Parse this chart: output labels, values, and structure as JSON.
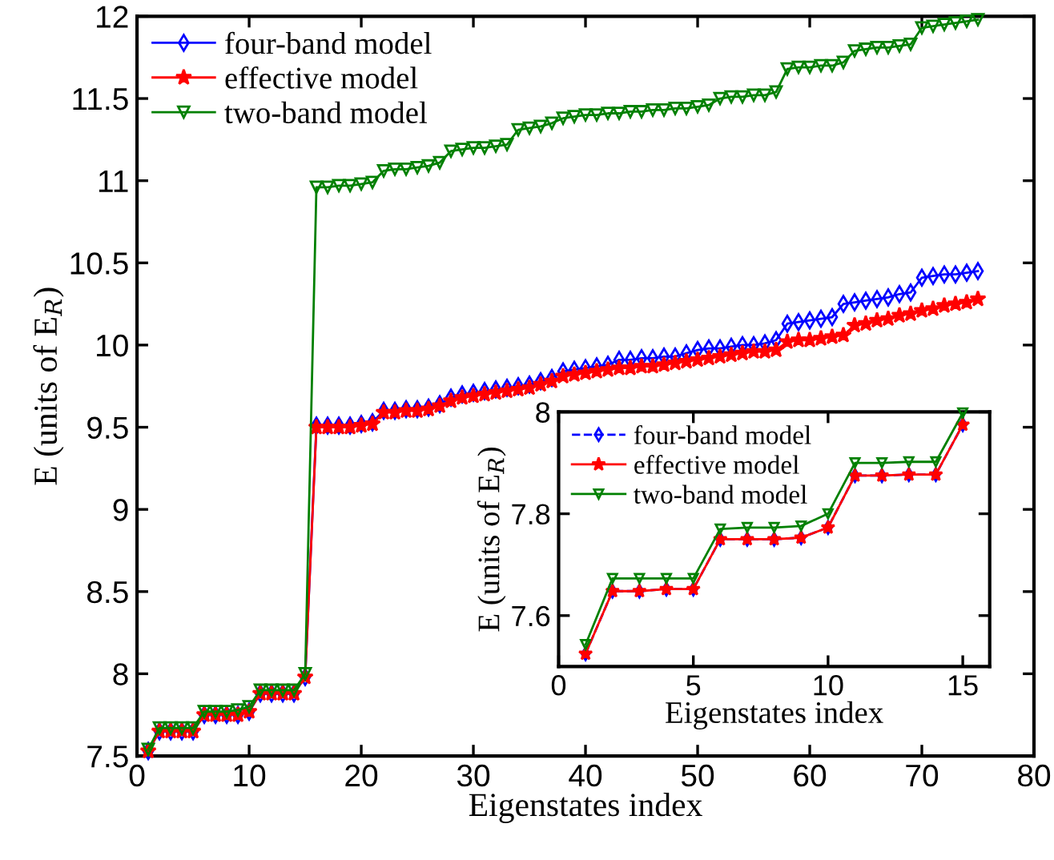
{
  "chart_data": [
    {
      "type": "line",
      "xlabel": "Eigenstates index",
      "ylabel": "E (units of E$_{R}$)",
      "x": [
        1,
        2,
        3,
        4,
        5,
        6,
        7,
        8,
        9,
        10,
        11,
        12,
        13,
        14,
        15,
        16,
        17,
        18,
        19,
        20,
        21,
        22,
        23,
        24,
        25,
        26,
        27,
        28,
        29,
        30,
        31,
        32,
        33,
        34,
        35,
        36,
        37,
        38,
        39,
        40,
        41,
        42,
        43,
        44,
        45,
        46,
        47,
        48,
        49,
        50,
        51,
        52,
        53,
        54,
        55,
        56,
        57,
        58,
        59,
        60,
        61,
        62,
        63,
        64,
        65,
        66,
        67,
        68,
        69,
        70,
        71,
        72,
        73,
        74,
        75
      ],
      "xlim": [
        0,
        80
      ],
      "xticks": [
        0,
        10,
        20,
        30,
        40,
        50,
        60,
        70,
        80
      ],
      "ylim": [
        7.5,
        12
      ],
      "yticks": [
        7.5,
        8,
        8.5,
        9,
        9.5,
        10,
        10.5,
        11,
        11.5,
        12
      ],
      "legend": "top left",
      "series": [
        {
          "name": "four-band model",
          "color": "#0000ff",
          "marker": "diamond",
          "line_style": "solid",
          "values": [
            7.53,
            7.65,
            7.65,
            7.65,
            7.65,
            7.75,
            7.75,
            7.75,
            7.75,
            7.77,
            7.88,
            7.88,
            7.88,
            7.88,
            7.98,
            9.51,
            9.51,
            9.51,
            9.51,
            9.52,
            9.53,
            9.6,
            9.6,
            9.61,
            9.61,
            9.62,
            9.64,
            9.68,
            9.7,
            9.71,
            9.72,
            9.73,
            9.74,
            9.75,
            9.76,
            9.78,
            9.8,
            9.84,
            9.85,
            9.86,
            9.87,
            9.88,
            9.91,
            9.91,
            9.92,
            9.92,
            9.93,
            9.93,
            9.95,
            9.97,
            9.98,
            9.98,
            9.99,
            10.0,
            10.0,
            10.01,
            10.03,
            10.13,
            10.14,
            10.15,
            10.16,
            10.17,
            10.25,
            10.26,
            10.27,
            10.28,
            10.29,
            10.31,
            10.32,
            10.41,
            10.42,
            10.43,
            10.43,
            10.44,
            10.45
          ]
        },
        {
          "name": "effective model",
          "color": "#ff0000",
          "marker": "star",
          "line_style": "solid",
          "values": [
            7.53,
            7.65,
            7.65,
            7.65,
            7.65,
            7.75,
            7.75,
            7.75,
            7.75,
            7.77,
            7.88,
            7.88,
            7.88,
            7.88,
            7.98,
            9.5,
            9.5,
            9.5,
            9.5,
            9.51,
            9.52,
            9.59,
            9.59,
            9.6,
            9.6,
            9.61,
            9.63,
            9.66,
            9.68,
            9.69,
            9.7,
            9.71,
            9.72,
            9.73,
            9.74,
            9.76,
            9.78,
            9.81,
            9.82,
            9.83,
            9.84,
            9.85,
            9.86,
            9.86,
            9.87,
            9.87,
            9.88,
            9.89,
            9.9,
            9.91,
            9.92,
            9.93,
            9.94,
            9.95,
            9.96,
            9.96,
            9.97,
            10.02,
            10.03,
            10.03,
            10.04,
            10.05,
            10.06,
            10.12,
            10.13,
            10.15,
            10.16,
            10.18,
            10.19,
            10.21,
            10.22,
            10.24,
            10.25,
            10.26,
            10.28
          ]
        },
        {
          "name": "two-band model",
          "color": "#008000",
          "marker": "triangle",
          "line_style": "solid",
          "values": [
            7.54,
            7.67,
            7.67,
            7.67,
            7.67,
            7.77,
            7.77,
            7.77,
            7.78,
            7.8,
            7.9,
            7.9,
            7.9,
            7.9,
            8.0,
            10.96,
            10.96,
            10.97,
            10.97,
            10.98,
            10.99,
            11.06,
            11.07,
            11.07,
            11.08,
            11.09,
            11.11,
            11.18,
            11.19,
            11.2,
            11.2,
            11.21,
            11.22,
            11.31,
            11.32,
            11.33,
            11.35,
            11.38,
            11.39,
            11.4,
            11.4,
            11.41,
            11.41,
            11.42,
            11.42,
            11.43,
            11.43,
            11.44,
            11.44,
            11.45,
            11.46,
            11.5,
            11.51,
            11.51,
            11.52,
            11.52,
            11.54,
            11.68,
            11.69,
            11.69,
            11.7,
            11.7,
            11.72,
            11.79,
            11.8,
            11.81,
            11.81,
            11.82,
            11.83,
            11.93,
            11.94,
            11.95,
            11.96,
            11.97,
            11.98
          ]
        }
      ]
    },
    {
      "type": "line",
      "xlabel": "Eigenstates index",
      "ylabel": "E (units of E$_{R}$)",
      "x": [
        1,
        2,
        3,
        4,
        5,
        6,
        7,
        8,
        9,
        10,
        11,
        12,
        13,
        14,
        15
      ],
      "xlim": [
        0,
        16
      ],
      "xticks": [
        0,
        5,
        10,
        15
      ],
      "ylim": [
        7.5,
        8
      ],
      "yticks": [
        7.6,
        7.8,
        8
      ],
      "legend": "top left",
      "series": [
        {
          "name": "four-band model",
          "color": "#0000ff",
          "marker": "diamond",
          "line_style": "dashed",
          "values": [
            7.525,
            7.648,
            7.648,
            7.652,
            7.652,
            7.75,
            7.75,
            7.75,
            7.753,
            7.773,
            7.875,
            7.875,
            7.877,
            7.877,
            7.975
          ]
        },
        {
          "name": "effective model",
          "color": "#ff0000",
          "marker": "star",
          "line_style": "solid",
          "values": [
            7.525,
            7.648,
            7.648,
            7.652,
            7.652,
            7.75,
            7.75,
            7.75,
            7.753,
            7.773,
            7.875,
            7.875,
            7.877,
            7.877,
            7.975
          ]
        },
        {
          "name": "two-band model",
          "color": "#008000",
          "marker": "triangle",
          "line_style": "solid",
          "values": [
            7.543,
            7.673,
            7.673,
            7.673,
            7.673,
            7.77,
            7.773,
            7.773,
            7.776,
            7.8,
            7.9,
            7.9,
            7.902,
            7.902,
            7.998
          ]
        }
      ]
    }
  ]
}
